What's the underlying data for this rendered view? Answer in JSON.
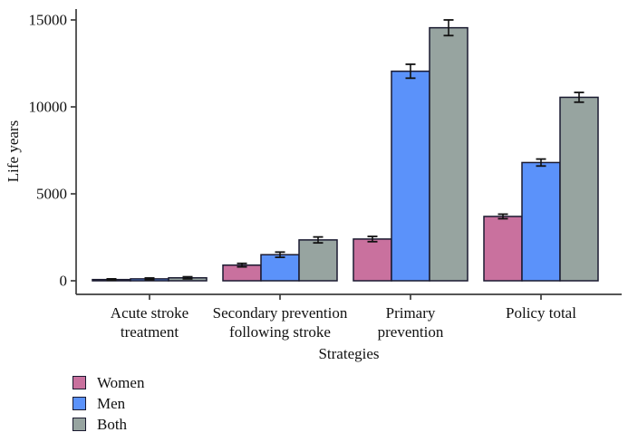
{
  "page": {
    "background": "#ffffff"
  },
  "chart_data": {
    "type": "bar",
    "title": "",
    "xlabel": "Strategies",
    "ylabel": "Life years",
    "ylim": [
      0,
      15000
    ],
    "yticks": [
      0,
      5000,
      10000,
      15000
    ],
    "ytick_labels": [
      "0",
      "5000",
      "10000",
      "15000"
    ],
    "categories": [
      "Acute stroke treatment",
      "Secondary prevention following stroke",
      "Primary prevention",
      "Policy total"
    ],
    "category_label_lines": [
      [
        "Acute stroke",
        "treatment"
      ],
      [
        "Secondary prevention",
        "following stroke"
      ],
      [
        "Primary",
        "prevention"
      ],
      [
        "Policy total"
      ]
    ],
    "grid": false,
    "legend_position": "bottom-left",
    "axis_color": "#3d3d3d",
    "bar_outline_color": "#1a1a30",
    "error_bar_color": "#111111",
    "series": [
      {
        "name": "Women",
        "color": "#c9719e",
        "values": [
          70,
          900,
          2400,
          3700
        ],
        "errors": [
          40,
          100,
          150,
          130
        ]
      },
      {
        "name": "Men",
        "color": "#5b92fa",
        "values": [
          110,
          1500,
          12050,
          6800
        ],
        "errors": [
          50,
          150,
          400,
          200
        ]
      },
      {
        "name": "Both",
        "color": "#97a4a0",
        "values": [
          170,
          2350,
          14550,
          10550
        ],
        "errors": [
          60,
          170,
          450,
          280
        ]
      }
    ]
  }
}
